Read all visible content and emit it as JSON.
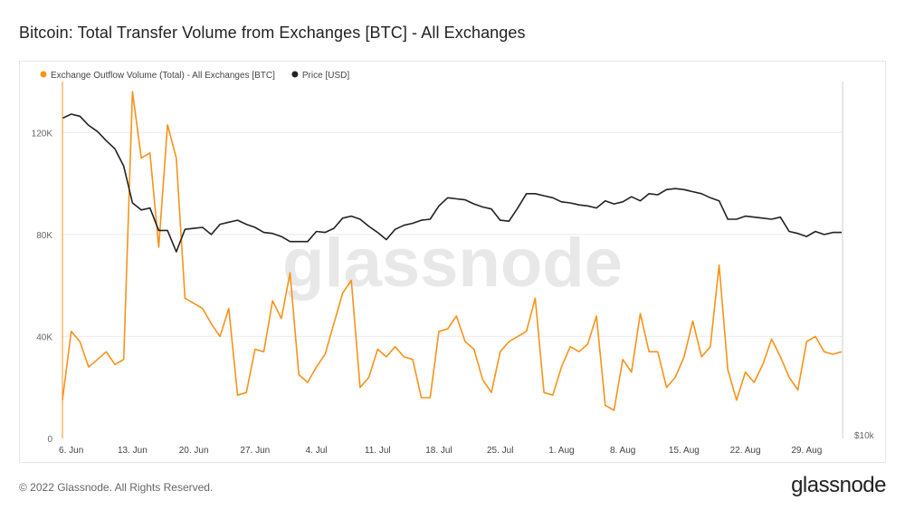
{
  "title": "Bitcoin: Total Transfer Volume from Exchanges [BTC] - All Exchanges",
  "footer": "© 2022 Glassnode. All Rights Reserved.",
  "brand": "glassnode",
  "watermark": "glassnode",
  "chart_data": {
    "type": "line",
    "legend_position": "top-left",
    "grid": "horizontal",
    "x_start_date": "2022-06-05",
    "x_tick_labels": [
      "6. Jun",
      "13. Jun",
      "20. Jun",
      "27. Jun",
      "4. Jul",
      "11. Jul",
      "18. Jul",
      "25. Jul",
      "1. Aug",
      "8. Aug",
      "15. Aug",
      "22. Aug",
      "29. Aug"
    ],
    "y_left": {
      "min": 0,
      "max": 140000,
      "ticks": [
        0,
        40000,
        80000,
        120000
      ],
      "tick_labels": [
        "0",
        "40K",
        "80K",
        "120K"
      ]
    },
    "y_right": {
      "tick_labels": [
        "$10k"
      ]
    },
    "series": [
      {
        "name": "Exchange Outflow Volume (Total) - All Exchanges [BTC]",
        "color": "#f7931a",
        "axis": "left",
        "values": [
          15000,
          42000,
          38000,
          28000,
          31000,
          34000,
          29000,
          31000,
          136000,
          110000,
          112000,
          75000,
          123000,
          110000,
          55000,
          53000,
          51000,
          45000,
          40000,
          51000,
          17000,
          18000,
          35000,
          34000,
          54000,
          47000,
          65000,
          25000,
          22000,
          28000,
          33000,
          45000,
          57000,
          62000,
          20000,
          24000,
          35000,
          32000,
          36000,
          32000,
          31000,
          16000,
          16000,
          42000,
          43000,
          48000,
          38000,
          35000,
          23000,
          18000,
          34000,
          38000,
          40000,
          42000,
          55000,
          18000,
          17000,
          28000,
          36000,
          34000,
          37000,
          48000,
          13000,
          11000,
          31000,
          26000,
          49000,
          34000,
          34000,
          20000,
          24000,
          32000,
          46000,
          32000,
          36000,
          68000,
          27000,
          15000,
          26000,
          22000,
          29000,
          39000,
          32000,
          24000,
          19000,
          38000,
          40000,
          34000,
          33000,
          34000
        ]
      },
      {
        "name": "Price [USD]",
        "color": "#222222",
        "axis": "right",
        "values": [
          31400,
          31800,
          31600,
          30700,
          30100,
          29200,
          28400,
          26700,
          23100,
          22400,
          22600,
          20400,
          20400,
          18300,
          20500,
          20600,
          20700,
          20000,
          21000,
          21200,
          21400,
          21000,
          20700,
          20200,
          20100,
          19800,
          19300,
          19300,
          19300,
          20300,
          20200,
          20600,
          21600,
          21800,
          21500,
          20800,
          20200,
          19500,
          20500,
          20900,
          21100,
          21400,
          21500,
          22800,
          23600,
          23500,
          23400,
          23000,
          22700,
          22500,
          21400,
          21300,
          22600,
          24000,
          24000,
          23800,
          23600,
          23200,
          23100,
          22900,
          22800,
          22600,
          23300,
          23000,
          23200,
          23700,
          23300,
          24000,
          23900,
          24400,
          24500,
          24400,
          24200,
          24000,
          23600,
          23300,
          21500,
          21500,
          21800,
          21700,
          21600,
          21500,
          21700,
          20300,
          20100,
          19800,
          20300,
          20000,
          20200,
          20200
        ]
      }
    ]
  }
}
